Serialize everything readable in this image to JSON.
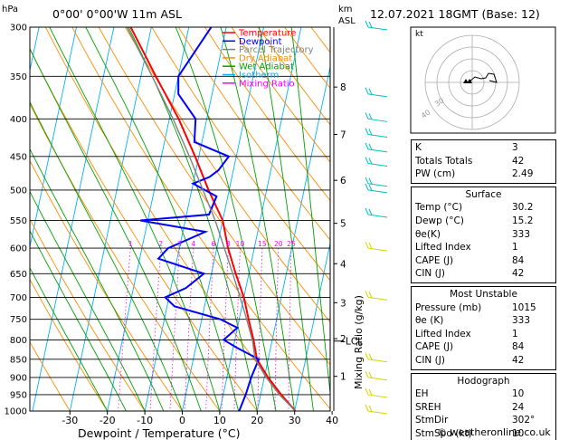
{
  "header": {
    "location": "0°00' 0°00'W 11m ASL",
    "datetime": "12.07.2021 18GMT (Base: 12)",
    "pressure_unit": "hPa",
    "altitude_unit": "km",
    "altitude_unit2": "ASL"
  },
  "legend": [
    {
      "label": "Temperature",
      "color": "#ff0000"
    },
    {
      "label": "Dewpoint",
      "color": "#0000ff"
    },
    {
      "label": "Parcel Trajectory",
      "color": "#808080"
    },
    {
      "label": "Dry Adiabat",
      "color": "#ff8c00"
    },
    {
      "label": "Wet Adiabat",
      "color": "#00a000"
    },
    {
      "label": "Isotherm",
      "color": "#00b0ff"
    },
    {
      "label": "Mixing Ratio",
      "color": "#ff00ff"
    }
  ],
  "colors": {
    "temperature": "#ff0000",
    "dewpoint": "#0000ff",
    "parcel": "#808080",
    "dry_adiabat": "#ff8c00",
    "wet_adiabat": "#00a000",
    "isotherm": "#00b0ff",
    "mixing_ratio": "#ff00ff",
    "wind_barb_upper": "#00c0c0",
    "wind_barb_lower": "#d4d400"
  },
  "chart_data": {
    "type": "line",
    "xlabel": "Dewpoint / Temperature (°C)",
    "y_right_label": "Mixing Ratio (g/kg)",
    "x_ticks": [
      -30,
      -20,
      -10,
      0,
      10,
      20,
      30,
      40
    ],
    "pressure_levels": [
      300,
      350,
      400,
      450,
      500,
      550,
      600,
      650,
      700,
      750,
      800,
      850,
      900,
      950,
      1000
    ],
    "altitude_labels": [
      {
        "km": "8",
        "p": 362
      },
      {
        "km": "7",
        "p": 420
      },
      {
        "km": "6",
        "p": 485
      },
      {
        "km": "5",
        "p": 555
      },
      {
        "km": "4",
        "p": 630
      },
      {
        "km": "3",
        "p": 712
      },
      {
        "km": "2",
        "p": 797
      },
      {
        "km": "1",
        "p": 897
      }
    ],
    "lcl_label": "LCL",
    "lcl_pressure": 803,
    "mixing_ratio_labels": [
      {
        "label": "1",
        "t1000": -17
      },
      {
        "label": "2",
        "t1000": -7
      },
      {
        "label": "3",
        "t1000": -1
      },
      {
        "label": "4",
        "t1000": 3
      },
      {
        "label": "6",
        "t1000": 9
      },
      {
        "label": "8",
        "t1000": 13
      },
      {
        "label": "10",
        "t1000": 16
      },
      {
        "label": "15",
        "t1000": 22
      },
      {
        "label": "20",
        "t1000": 26
      },
      {
        "label": "25",
        "t1000": 29
      }
    ],
    "series": [
      {
        "name": "Temperature",
        "points": [
          [
            1000,
            30.2
          ],
          [
            950,
            25.5
          ],
          [
            900,
            21
          ],
          [
            850,
            17
          ],
          [
            800,
            15
          ],
          [
            750,
            12.5
          ],
          [
            700,
            10
          ],
          [
            650,
            6.5
          ],
          [
            600,
            3
          ],
          [
            550,
            0
          ],
          [
            500,
            -5.5
          ],
          [
            450,
            -11
          ],
          [
            400,
            -17.5
          ],
          [
            350,
            -26
          ],
          [
            300,
            -35.5
          ]
        ]
      },
      {
        "name": "Dewpoint",
        "points": [
          [
            1000,
            15.2
          ],
          [
            950,
            16
          ],
          [
            900,
            16.5
          ],
          [
            850,
            17.5
          ],
          [
            820,
            11
          ],
          [
            800,
            7
          ],
          [
            770,
            10
          ],
          [
            750,
            5
          ],
          [
            720,
            -8
          ],
          [
            700,
            -11
          ],
          [
            680,
            -6
          ],
          [
            650,
            -2
          ],
          [
            620,
            -15
          ],
          [
            600,
            -13
          ],
          [
            570,
            -4
          ],
          [
            550,
            -22
          ],
          [
            540,
            -4
          ],
          [
            510,
            -3
          ],
          [
            490,
            -10
          ],
          [
            480,
            -6
          ],
          [
            470,
            -4
          ],
          [
            450,
            -2
          ],
          [
            430,
            -12
          ],
          [
            400,
            -13
          ],
          [
            370,
            -19
          ],
          [
            350,
            -20
          ],
          [
            300,
            -14
          ]
        ]
      },
      {
        "name": "Parcel Trajectory",
        "points": [
          [
            1000,
            30.2
          ],
          [
            950,
            25
          ],
          [
            900,
            20.5
          ],
          [
            850,
            16.5
          ],
          [
            803,
            14.8
          ],
          [
            750,
            12
          ],
          [
            700,
            9
          ],
          [
            650,
            5.7
          ],
          [
            600,
            2
          ],
          [
            550,
            -2
          ],
          [
            500,
            -7
          ],
          [
            450,
            -12.5
          ],
          [
            400,
            -19
          ],
          [
            350,
            -27
          ],
          [
            300,
            -36.5
          ]
        ]
      }
    ]
  },
  "wind_barbs": [
    {
      "p": 300,
      "color": "cyan"
    },
    {
      "p": 370,
      "color": "cyan"
    },
    {
      "p": 400,
      "color": "cyan"
    },
    {
      "p": 420,
      "color": "cyan"
    },
    {
      "p": 440,
      "color": "cyan"
    },
    {
      "p": 460,
      "color": "cyan"
    },
    {
      "p": 490,
      "color": "cyan"
    },
    {
      "p": 500,
      "color": "cyan"
    },
    {
      "p": 540,
      "color": "cyan"
    },
    {
      "p": 600,
      "color": "yellow"
    },
    {
      "p": 700,
      "color": "yellow"
    },
    {
      "p": 850,
      "color": "yellow"
    },
    {
      "p": 900,
      "color": "yellow"
    },
    {
      "p": 950,
      "color": "yellow"
    },
    {
      "p": 1000,
      "color": "yellow"
    }
  ],
  "hodograph": {
    "label": "kt",
    "ring_labels": [
      "40",
      "30"
    ]
  },
  "indices": [
    {
      "label": "K",
      "value": "3"
    },
    {
      "label": "Totals Totals",
      "value": "42"
    },
    {
      "label": "PW (cm)",
      "value": "2.49"
    }
  ],
  "surface": {
    "title": "Surface",
    "rows": [
      {
        "label": "Temp (°C)",
        "value": "30.2"
      },
      {
        "label": "Dewp (°C)",
        "value": "15.2"
      },
      {
        "label": "θe(K)",
        "value": "333"
      },
      {
        "label": "Lifted Index",
        "value": "1"
      },
      {
        "label": "CAPE (J)",
        "value": "84"
      },
      {
        "label": "CIN (J)",
        "value": "42"
      }
    ]
  },
  "most_unstable": {
    "title": "Most Unstable",
    "rows": [
      {
        "label": "Pressure (mb)",
        "value": "1015"
      },
      {
        "label": "θe (K)",
        "value": "333"
      },
      {
        "label": "Lifted Index",
        "value": "1"
      },
      {
        "label": "CAPE (J)",
        "value": "84"
      },
      {
        "label": "CIN (J)",
        "value": "42"
      }
    ]
  },
  "hodograph_table": {
    "title": "Hodograph",
    "rows": [
      {
        "label": "EH",
        "value": "10"
      },
      {
        "label": "SREH",
        "value": "24"
      },
      {
        "label": "StmDir",
        "value": "302°"
      },
      {
        "label": "StmSpd (kt)",
        "value": "10"
      }
    ]
  },
  "footer": {
    "copyright": "© weatheronline.co.uk"
  }
}
